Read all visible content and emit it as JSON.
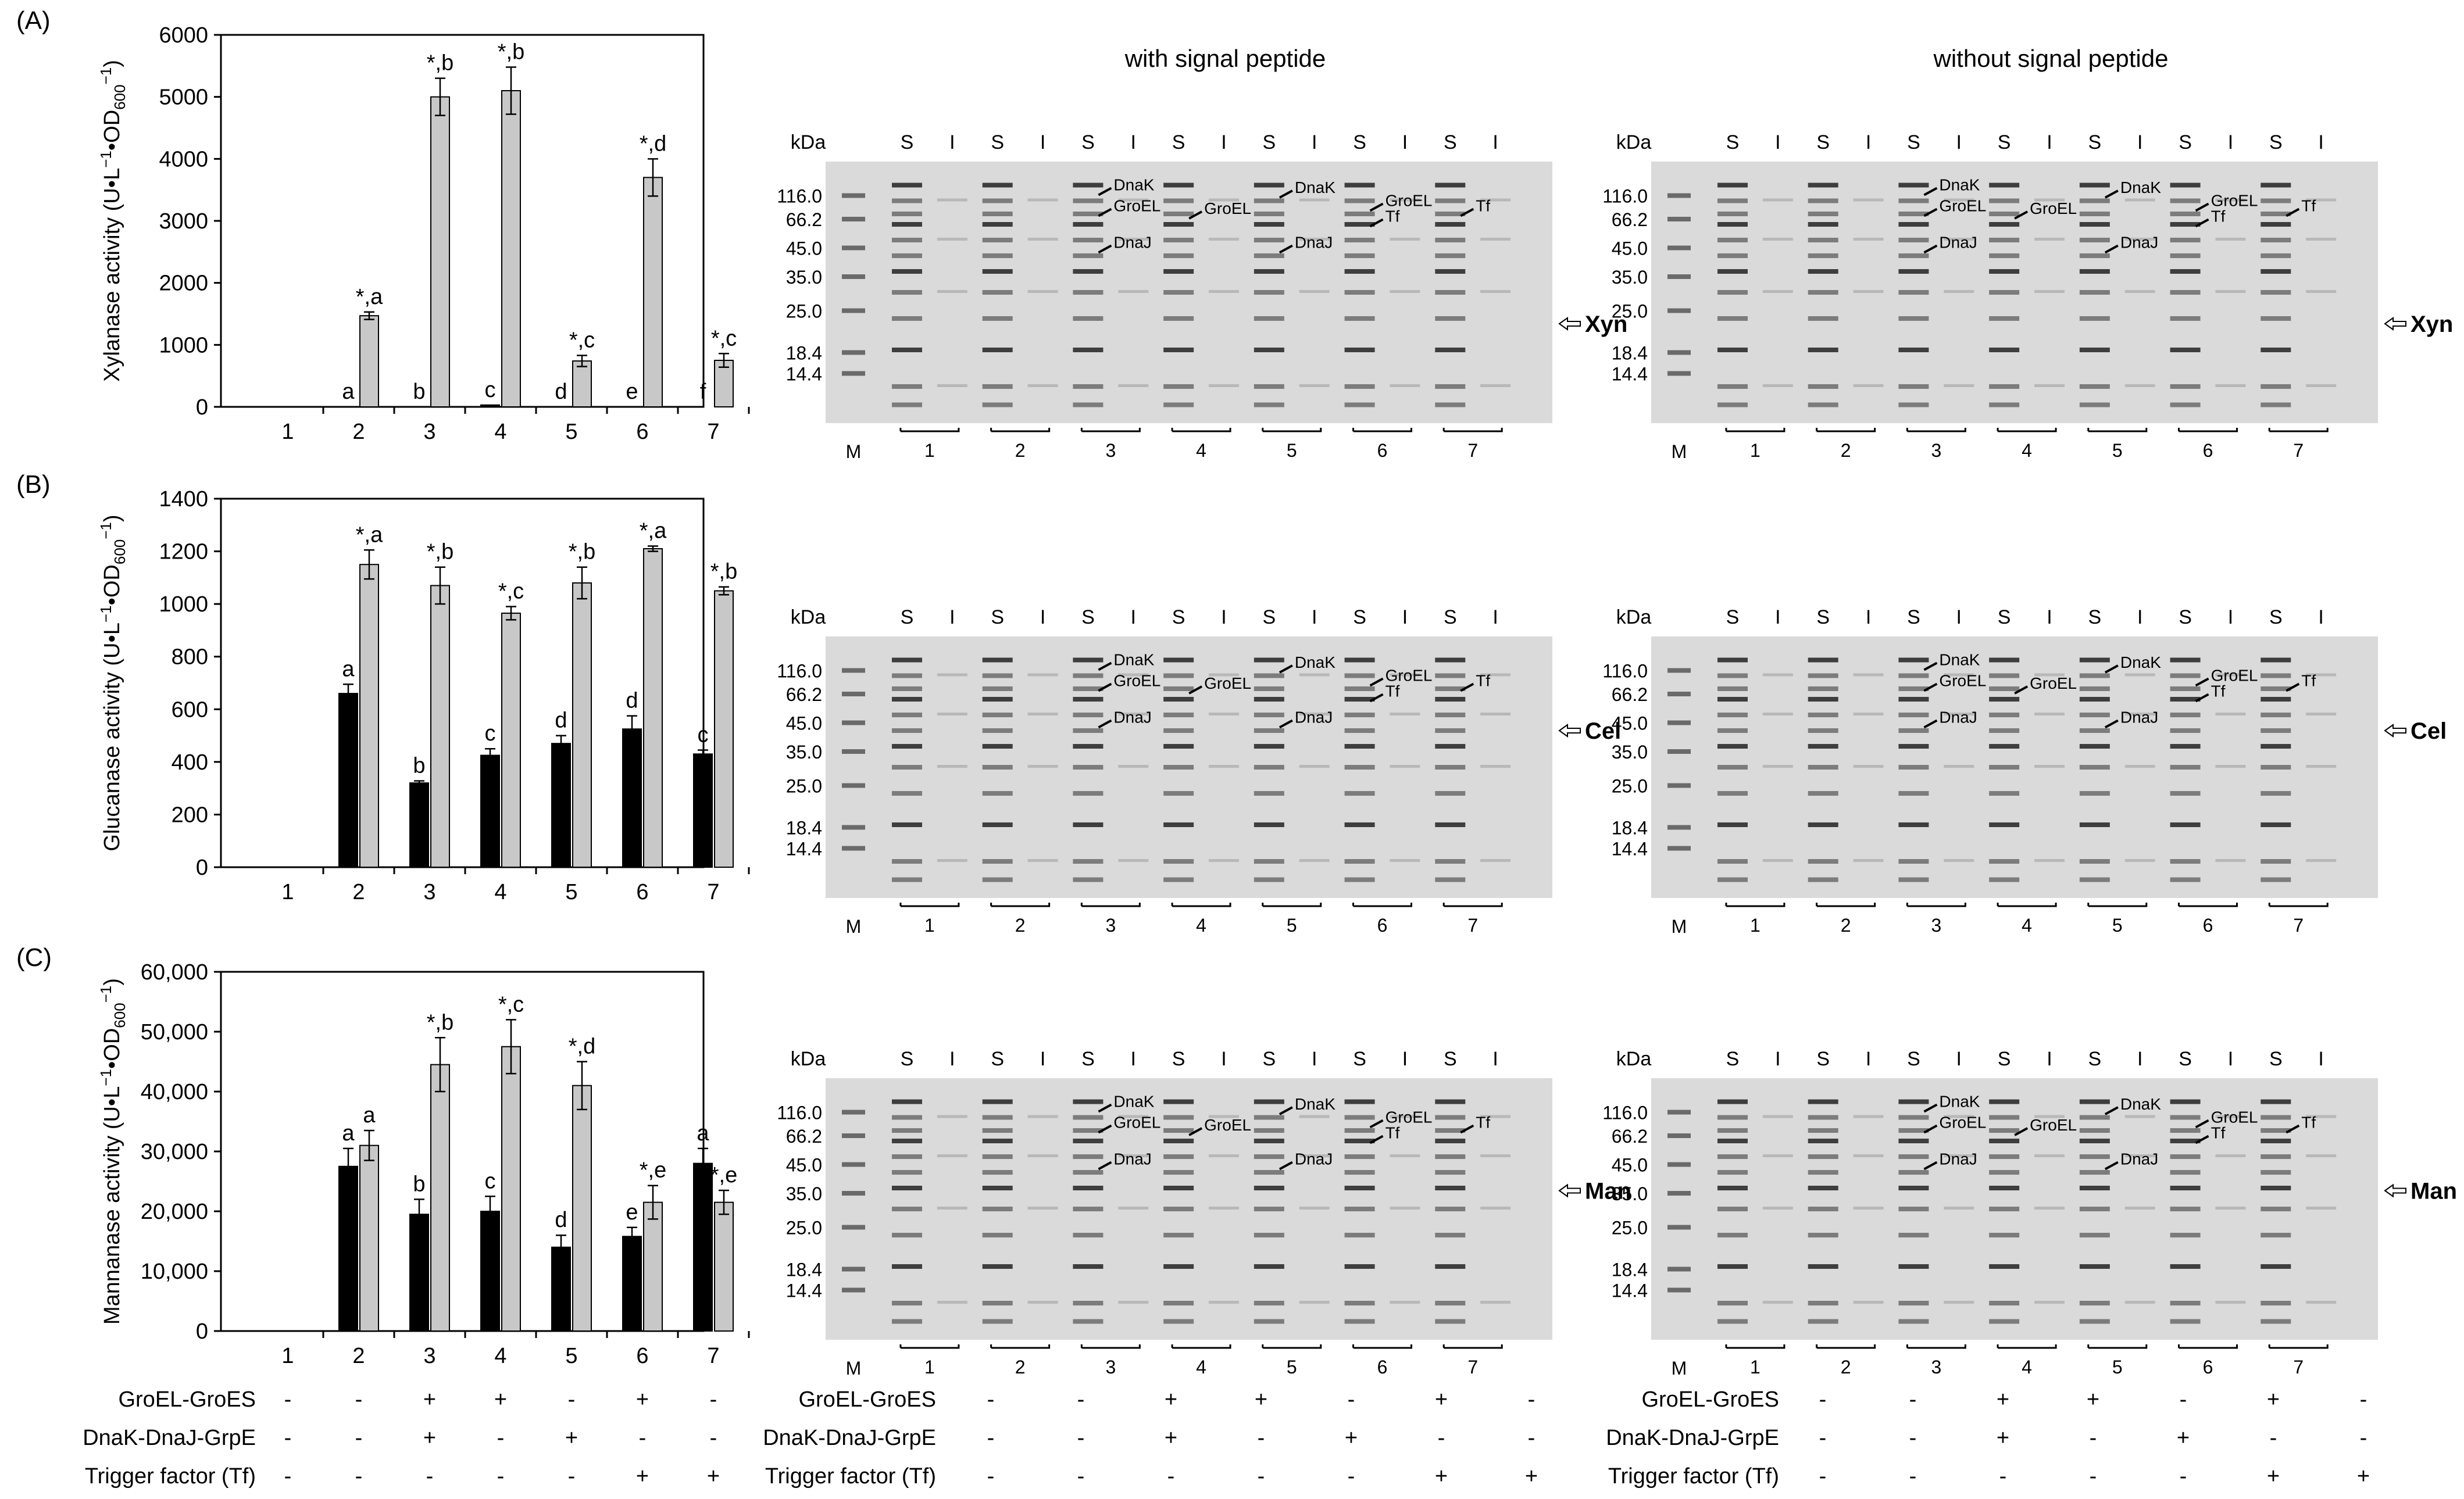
{
  "palette": {
    "black_bar": "#000000",
    "grey_bar": "#c8c8c8",
    "gel_bg": "#d9d9d9"
  },
  "gel_headers": {
    "with": "with signal peptide",
    "without": "without signal peptide"
  },
  "gel_common": {
    "kda": "kDa",
    "markers": [
      "116.0",
      "66.2",
      "45.0",
      "35.0",
      "25.0",
      "18.4",
      "14.4"
    ],
    "lane_top": [
      "S",
      "I",
      "S",
      "I",
      "S",
      "I",
      "S",
      "I",
      "S",
      "I",
      "S",
      "I",
      "S",
      "I"
    ],
    "marker_lane": "M",
    "groups": [
      "1",
      "2",
      "3",
      "4",
      "5",
      "6",
      "7"
    ],
    "chaperones": {
      "dnak": "DnaK",
      "groel": "GroEL",
      "dnaj": "DnaJ",
      "tf": "Tf"
    }
  },
  "gels": [
    {
      "row": 0,
      "side": "with",
      "target": "Xyn"
    },
    {
      "row": 0,
      "side": "without",
      "target": "Xyn"
    },
    {
      "row": 1,
      "side": "with",
      "target": "Cel"
    },
    {
      "row": 1,
      "side": "without",
      "target": "Cel"
    },
    {
      "row": 2,
      "side": "with",
      "target": "Man"
    },
    {
      "row": 2,
      "side": "without",
      "target": "Man"
    }
  ],
  "conditions": {
    "rows": [
      {
        "label": "GroEL-GroES",
        "values": [
          "-",
          "-",
          "+",
          "+",
          "-",
          "+",
          "-"
        ]
      },
      {
        "label": "DnaK-DnaJ-GrpE",
        "values": [
          "-",
          "-",
          "+",
          "-",
          "+",
          "-",
          "-"
        ]
      },
      {
        "label": "Trigger factor (Tf)",
        "values": [
          "-",
          "-",
          "-",
          "-",
          "-",
          "+",
          "+"
        ]
      }
    ]
  },
  "chart_data": [
    {
      "type": "bar",
      "panel_label": "(A)",
      "ylabel_main": "Xylanase activity (U•L",
      "ylabel_mid": "•OD",
      "ylabel_sub": "600",
      "ylabel_tail": ")",
      "sup": "−1",
      "categories": [
        "1",
        "2",
        "3",
        "4",
        "5",
        "6",
        "7"
      ],
      "yticks": [
        "0",
        "1000",
        "2000",
        "3000",
        "4000",
        "5000",
        "6000"
      ],
      "ylim": [
        0,
        6000
      ],
      "series": [
        {
          "values": [
            0,
            0,
            0,
            30,
            0,
            0,
            0
          ],
          "errors": [
            0,
            0,
            0,
            0,
            0,
            0,
            0
          ],
          "labels": [
            "",
            "a",
            "b",
            "c",
            "d",
            "e",
            "f"
          ],
          "color": "#000000"
        },
        {
          "values": [
            0,
            1470,
            5000,
            5100,
            740,
            3700,
            750
          ],
          "errors": [
            0,
            60,
            300,
            380,
            90,
            300,
            110
          ],
          "labels": [
            "",
            "*,a",
            "*,b",
            "*,b",
            "*,c",
            "*,d",
            "*,c"
          ],
          "color": "#c8c8c8"
        }
      ]
    },
    {
      "type": "bar",
      "panel_label": "(B)",
      "ylabel_main": "Glucanase activity (U•L",
      "ylabel_mid": "•OD",
      "ylabel_sub": "600",
      "ylabel_tail": ")",
      "sup": "−1",
      "categories": [
        "1",
        "2",
        "3",
        "4",
        "5",
        "6",
        "7"
      ],
      "yticks": [
        "0",
        "200",
        "400",
        "600",
        "800",
        "1000",
        "1200",
        "1400"
      ],
      "ylim": [
        0,
        1400
      ],
      "series": [
        {
          "values": [
            0,
            660,
            320,
            425,
            470,
            525,
            430
          ],
          "errors": [
            0,
            35,
            8,
            25,
            30,
            50,
            15
          ],
          "labels": [
            "",
            "a",
            "b",
            "c",
            "d",
            "d",
            "c"
          ],
          "color": "#000000"
        },
        {
          "values": [
            0,
            1150,
            1070,
            965,
            1080,
            1210,
            1050
          ],
          "errors": [
            0,
            55,
            70,
            25,
            60,
            10,
            15
          ],
          "labels": [
            "",
            "*,a",
            "*,b",
            "*,c",
            "*,b",
            "*,a",
            "*,b"
          ],
          "color": "#c8c8c8"
        }
      ]
    },
    {
      "type": "bar",
      "panel_label": "(C)",
      "ylabel_main": "Mannanase activity (U•L",
      "ylabel_mid": "•OD",
      "ylabel_sub": "600",
      "ylabel_tail": ")",
      "sup": "−1",
      "categories": [
        "1",
        "2",
        "3",
        "4",
        "5",
        "6",
        "7"
      ],
      "yticks": [
        "0",
        "10,000",
        "20,000",
        "30,000",
        "40,000",
        "50,000",
        "60,000"
      ],
      "ylim": [
        0,
        60000
      ],
      "series": [
        {
          "values": [
            0,
            27500,
            19500,
            20000,
            14000,
            15800,
            28000
          ],
          "errors": [
            0,
            3000,
            2500,
            2500,
            2000,
            1500,
            2500
          ],
          "labels": [
            "",
            "a",
            "b",
            "c",
            "d",
            "e",
            "a"
          ],
          "color": "#000000"
        },
        {
          "values": [
            0,
            31000,
            44500,
            47500,
            41000,
            21500,
            21500
          ],
          "errors": [
            0,
            2500,
            4500,
            4500,
            4000,
            2800,
            2000
          ],
          "labels": [
            "",
            "a",
            "*,b",
            "*,c",
            "*,d",
            "*,e",
            "*,e"
          ],
          "color": "#c8c8c8"
        }
      ]
    }
  ]
}
